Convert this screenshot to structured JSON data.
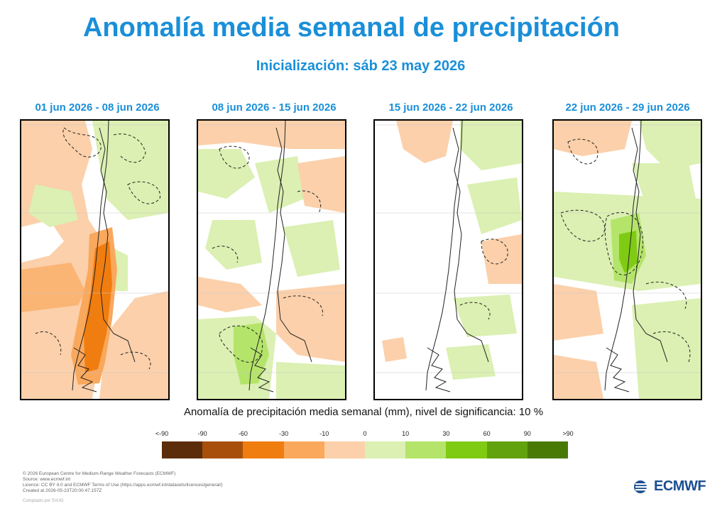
{
  "header": {
    "title": "Anomalía media semanal de precipitación",
    "subtitle": "Inicialización: sáb 23 may 2026"
  },
  "panels": [
    {
      "label": "01 jun 2026 - 08 jun 2026",
      "anomaly": "dry"
    },
    {
      "label": "08 jun 2026 - 15 jun 2026",
      "anomaly": "mixed"
    },
    {
      "label": "15 jun 2026 - 22 jun 2026",
      "anomaly": "weak"
    },
    {
      "label": "22 jun 2026 - 29 jun 2026",
      "anomaly": "wet"
    }
  ],
  "caption": "Anomalía de precipitación media semanal (mm), nivel de significancia: 10 %",
  "legend": {
    "labels": [
      "<-90",
      "-90",
      "-60",
      "-30",
      "-10",
      "0",
      "10",
      "30",
      "60",
      "90",
      ">90"
    ],
    "colors": [
      "#5c2d0a",
      "#a84f0c",
      "#f07d10",
      "#f9a85c",
      "#fbd0aa",
      "#dbf0b2",
      "#b4e46a",
      "#7fcb14",
      "#62a20c",
      "#4a7a06"
    ]
  },
  "footer": {
    "lines": [
      "© 2026 European Centre for Medium-Range Weather Forecasts (ECMWF)",
      "Source: www.ecmwf.int",
      "Licence: CC BY 4.0 and ECMWF Terms of Use (https://apps.ecmwf.int/datasets/licences/general/)",
      "Created at 2026-05-23T20:00:47.157Z"
    ],
    "faint": "Compilado por SVUG"
  },
  "logo": {
    "text": "ECMWF"
  }
}
